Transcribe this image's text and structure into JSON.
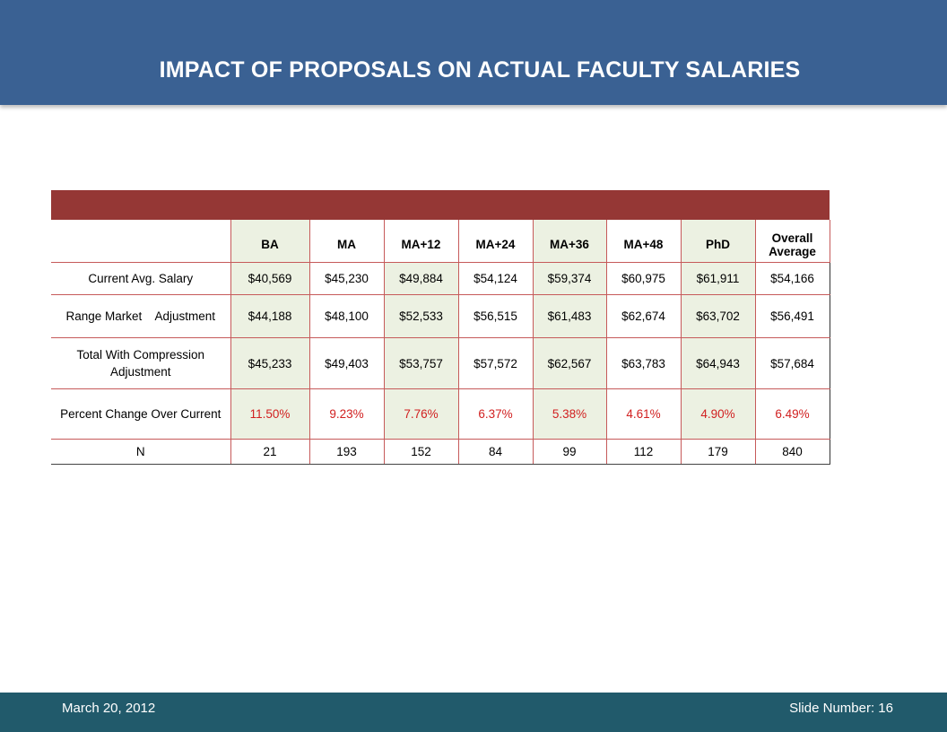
{
  "slide": {
    "title": "IMPACT OF PROPOSALS ON ACTUAL FACULTY SALARIES"
  },
  "table": {
    "headers": [
      "",
      "BA",
      "MA",
      "MA+12",
      "MA+24",
      "MA+36",
      "MA+48",
      "PhD",
      "Overall Average"
    ],
    "rows": [
      {
        "label": "Current Avg. Salary",
        "values": [
          "$40,569",
          "$45,230",
          "$49,884",
          "$54,124",
          "$59,374",
          "$60,975",
          "$61,911",
          "$54,166"
        ]
      },
      {
        "label": "Range Market    Adjustment",
        "values": [
          "$44,188",
          "$48,100",
          "$52,533",
          "$56,515",
          "$61,483",
          "$62,674",
          "$63,702",
          "$56,491"
        ]
      },
      {
        "label": "Total With Compression Adjustment",
        "values": [
          "$45,233",
          "$49,403",
          "$53,757",
          "$57,572",
          "$62,567",
          "$63,783",
          "$64,943",
          "$57,684"
        ]
      },
      {
        "label": "Percent Change Over Current",
        "values": [
          "11.50%",
          "9.23%",
          "7.76%",
          "6.37%",
          "5.38%",
          "4.61%",
          "4.90%",
          "6.49%"
        ]
      },
      {
        "label": "N",
        "values": [
          "21",
          "193",
          "152",
          "84",
          "99",
          "112",
          "179",
          "840"
        ]
      }
    ]
  },
  "footer": {
    "date": "March 20, 2012",
    "slide_number": "Slide Number:  16"
  },
  "colors": {
    "header_bg": "#3a6193",
    "table_bar": "#953735",
    "column_fill": "#ecf1e2",
    "percent_text": "#d12020",
    "footer_bg": "#215a6b"
  }
}
